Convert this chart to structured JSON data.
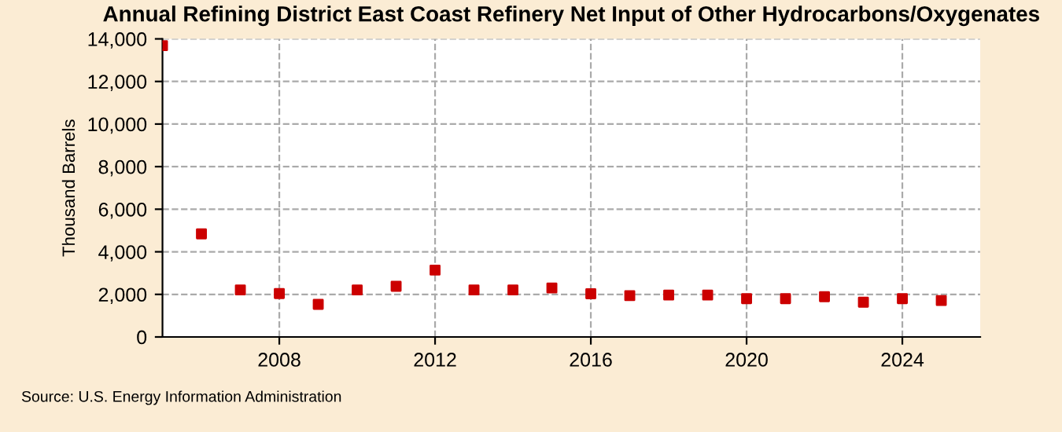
{
  "chart_data": {
    "type": "scatter",
    "title": "Annual Refining District East Coast Refinery Net Input of Other Hydrocarbons/Oxygenates",
    "ylabel": "Thousand Barrels",
    "x": [
      2005,
      2006,
      2007,
      2008,
      2009,
      2010,
      2011,
      2012,
      2013,
      2014,
      2015,
      2016,
      2017,
      2018,
      2019,
      2020,
      2021,
      2022,
      2023,
      2024,
      2025
    ],
    "series": [
      {
        "color": "#cc0000",
        "values": [
          13680,
          4840,
          2210,
          2040,
          1530,
          2210,
          2380,
          3140,
          2210,
          2210,
          2300,
          2030,
          1940,
          1970,
          1970,
          1800,
          1800,
          1890,
          1630,
          1800,
          1710
        ]
      }
    ],
    "xlim": [
      2005,
      2026
    ],
    "xticks": [
      2008,
      2012,
      2016,
      2020,
      2024
    ],
    "ylim": [
      0,
      14000
    ],
    "yticks": [
      {
        "value": 0,
        "label": "0"
      },
      {
        "value": 2000,
        "label": "2,000"
      },
      {
        "value": 4000,
        "label": "4,000"
      },
      {
        "value": 6000,
        "label": "6,000"
      },
      {
        "value": 8000,
        "label": "8,000"
      },
      {
        "value": 10000,
        "label": "10,000"
      },
      {
        "value": 12000,
        "label": "12,000"
      },
      {
        "value": 14000,
        "label": "14,000"
      }
    ],
    "grid": true,
    "marker": "square",
    "annotations": [
      "Source: U.S. Energy Information Administration"
    ]
  }
}
